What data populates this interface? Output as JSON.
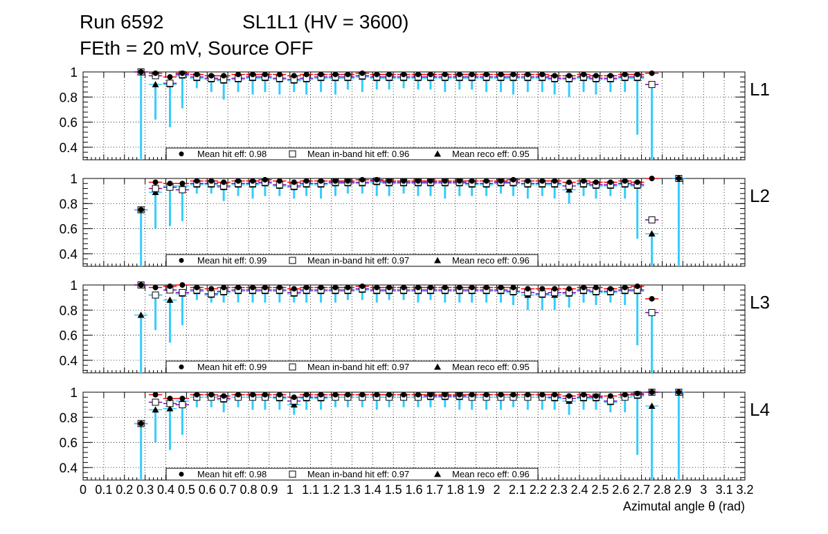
{
  "header": {
    "run": "Run 6592",
    "chamber": "SL1L1 (HV = 3600)",
    "conditions": "FEth = 20 mV, Source OFF"
  },
  "colors": {
    "hit": "#000000",
    "hit_err": "#ff0000",
    "inband_err": "#8000c0",
    "reco_err": "#33ccff",
    "grid": "#000000"
  },
  "chart_data": {
    "type": "scatter",
    "title": "Run 6592   SL1L1 (HV = 3600)  FEth = 20 mV, Source OFF",
    "xlabel": "Azimutal angle θ (rad)",
    "xlim": [
      0,
      3.2
    ],
    "ylim": [
      0.3,
      1.0
    ],
    "x_ticks": [
      "0",
      "0.1",
      "0.2",
      "0.3",
      "0.4",
      "0.5",
      "0.6",
      "0.7",
      "0.8",
      "0.9",
      "1",
      "1.1",
      "1.2",
      "1.3",
      "1.4",
      "1.5",
      "1.6",
      "1.7",
      "1.8",
      "1.9",
      "2",
      "2.1",
      "2.2",
      "2.3",
      "2.4",
      "2.5",
      "2.6",
      "2.7",
      "2.8",
      "2.9",
      "3",
      "3.1",
      "3.2"
    ],
    "y_ticks": [
      "0.4",
      "0.6",
      "0.8",
      "1"
    ],
    "x": [
      0.28,
      0.35,
      0.42,
      0.48,
      0.55,
      0.62,
      0.68,
      0.75,
      0.82,
      0.88,
      0.95,
      1.02,
      1.08,
      1.15,
      1.22,
      1.28,
      1.35,
      1.42,
      1.48,
      1.55,
      1.62,
      1.68,
      1.75,
      1.82,
      1.88,
      1.95,
      2.02,
      2.08,
      2.15,
      2.22,
      2.28,
      2.35,
      2.42,
      2.48,
      2.55,
      2.62,
      2.68,
      2.75,
      2.82,
      2.88
    ],
    "panels": [
      {
        "label": "L1",
        "legend": [
          "Mean hit  eff: 0.98",
          "Mean in-band hit eff: 0.96",
          "Mean reco eff: 0.95"
        ],
        "hit": [
          1.0,
          0.99,
          0.96,
          0.99,
          0.98,
          0.97,
          0.97,
          0.98,
          0.98,
          0.98,
          0.98,
          0.97,
          0.98,
          0.98,
          0.98,
          0.98,
          0.99,
          0.98,
          0.98,
          0.98,
          0.98,
          0.98,
          0.98,
          0.98,
          0.98,
          0.98,
          0.98,
          0.98,
          0.98,
          0.98,
          0.97,
          0.97,
          0.98,
          0.97,
          0.97,
          0.98,
          0.98,
          0.99,
          null,
          null
        ],
        "inband": [
          1.0,
          0.97,
          0.91,
          0.98,
          0.96,
          0.95,
          0.94,
          0.95,
          0.96,
          0.96,
          0.95,
          0.94,
          0.95,
          0.96,
          0.96,
          0.96,
          0.97,
          0.96,
          0.96,
          0.96,
          0.96,
          0.96,
          0.96,
          0.96,
          0.96,
          0.96,
          0.96,
          0.96,
          0.96,
          0.96,
          0.95,
          0.95,
          0.96,
          0.95,
          0.95,
          0.96,
          0.96,
          0.9,
          null,
          null
        ],
        "reco": [
          null,
          0.9,
          0.9,
          0.97,
          0.95,
          0.94,
          0.93,
          0.94,
          0.95,
          0.95,
          0.94,
          0.93,
          0.94,
          0.95,
          0.95,
          0.95,
          0.96,
          0.95,
          0.95,
          0.95,
          0.95,
          0.95,
          0.95,
          0.95,
          0.95,
          0.95,
          0.95,
          0.95,
          0.95,
          0.95,
          0.94,
          0.94,
          0.95,
          0.94,
          0.94,
          0.95,
          0.95,
          null,
          null,
          null
        ],
        "reco_low": [
          0.3,
          0.62,
          0.56,
          0.71,
          0.87,
          0.84,
          0.78,
          0.84,
          0.82,
          0.84,
          0.82,
          0.84,
          0.82,
          0.84,
          0.82,
          0.86,
          0.84,
          0.86,
          0.86,
          0.87,
          0.86,
          0.86,
          0.84,
          0.86,
          0.86,
          0.84,
          0.84,
          0.82,
          0.84,
          0.84,
          0.82,
          0.8,
          0.84,
          0.82,
          0.84,
          0.84,
          0.5,
          0.3,
          null,
          null
        ]
      },
      {
        "label": "L2",
        "legend": [
          "Mean hit  eff: 0.99",
          "Mean in-band hit eff: 0.97",
          "Mean reco eff: 0.96"
        ],
        "hit": [
          0.75,
          0.97,
          0.96,
          0.96,
          0.98,
          0.98,
          0.97,
          0.98,
          0.98,
          0.99,
          0.98,
          0.97,
          0.98,
          0.98,
          0.98,
          0.98,
          0.99,
          0.99,
          0.98,
          0.98,
          0.98,
          0.98,
          0.98,
          0.98,
          0.98,
          0.98,
          0.98,
          0.99,
          0.98,
          0.98,
          0.98,
          0.97,
          0.98,
          0.97,
          0.97,
          0.98,
          0.97,
          1.0,
          null,
          1.0
        ],
        "inband": [
          0.75,
          0.92,
          0.93,
          0.91,
          0.96,
          0.96,
          0.94,
          0.96,
          0.96,
          0.97,
          0.95,
          0.94,
          0.96,
          0.96,
          0.97,
          0.97,
          0.97,
          0.98,
          0.97,
          0.97,
          0.97,
          0.97,
          0.97,
          0.97,
          0.96,
          0.96,
          0.97,
          0.97,
          0.96,
          0.96,
          0.96,
          0.94,
          0.96,
          0.95,
          0.95,
          0.96,
          0.95,
          0.67,
          null,
          1.0
        ],
        "reco": [
          0.75,
          0.89,
          0.94,
          0.94,
          0.95,
          0.95,
          0.93,
          0.95,
          0.95,
          0.96,
          0.94,
          0.93,
          0.95,
          0.95,
          0.96,
          0.96,
          0.96,
          0.97,
          0.96,
          0.96,
          0.96,
          0.96,
          0.96,
          0.96,
          0.95,
          0.95,
          0.96,
          0.96,
          0.95,
          0.95,
          0.95,
          0.91,
          0.95,
          0.94,
          0.94,
          0.95,
          0.94,
          0.56,
          null,
          1.0
        ],
        "reco_low": [
          0.3,
          0.6,
          0.62,
          0.66,
          0.88,
          0.88,
          0.82,
          0.86,
          0.84,
          0.86,
          0.86,
          0.84,
          0.86,
          0.84,
          0.86,
          0.88,
          0.88,
          0.86,
          0.86,
          0.88,
          0.86,
          0.86,
          0.84,
          0.86,
          0.86,
          0.86,
          0.88,
          0.86,
          0.84,
          0.86,
          0.84,
          0.8,
          0.86,
          0.84,
          0.86,
          0.84,
          0.52,
          0.3,
          null,
          0.3
        ]
      },
      {
        "label": "L3",
        "legend": [
          "Mean hit  eff: 0.99",
          "Mean in-band hit eff: 0.97",
          "Mean reco eff: 0.95"
        ],
        "hit": [
          1.0,
          0.98,
          0.99,
          1.0,
          0.98,
          0.97,
          0.98,
          0.98,
          0.98,
          0.98,
          0.98,
          0.97,
          0.98,
          0.98,
          0.98,
          0.98,
          0.99,
          0.98,
          0.98,
          0.98,
          0.98,
          0.98,
          0.98,
          0.98,
          0.98,
          0.98,
          0.98,
          0.98,
          0.97,
          0.97,
          0.97,
          0.97,
          0.98,
          0.98,
          0.97,
          0.98,
          0.99,
          0.89,
          null,
          null
        ],
        "inband": [
          1.0,
          0.92,
          0.96,
          0.94,
          0.96,
          0.93,
          0.95,
          0.96,
          0.96,
          0.96,
          0.96,
          0.94,
          0.96,
          0.96,
          0.96,
          0.96,
          0.97,
          0.96,
          0.96,
          0.96,
          0.96,
          0.96,
          0.96,
          0.96,
          0.96,
          0.96,
          0.96,
          0.95,
          0.94,
          0.93,
          0.94,
          0.94,
          0.96,
          0.95,
          0.95,
          0.96,
          0.96,
          0.78,
          null,
          null
        ],
        "reco": [
          0.76,
          0.92,
          0.88,
          0.93,
          0.95,
          0.92,
          0.94,
          0.95,
          0.95,
          0.95,
          0.95,
          0.93,
          0.95,
          0.95,
          0.95,
          0.95,
          0.96,
          0.95,
          0.95,
          0.95,
          0.95,
          0.95,
          0.95,
          0.95,
          0.95,
          0.95,
          0.95,
          0.94,
          0.92,
          0.92,
          0.92,
          0.93,
          0.95,
          0.94,
          0.94,
          0.95,
          0.95,
          null,
          null,
          null
        ],
        "reco_low": [
          0.3,
          0.64,
          0.54,
          0.68,
          0.88,
          0.86,
          0.86,
          0.86,
          0.86,
          0.86,
          0.86,
          0.86,
          0.86,
          0.86,
          0.86,
          0.88,
          0.88,
          0.86,
          0.88,
          0.88,
          0.86,
          0.88,
          0.86,
          0.86,
          0.86,
          0.86,
          0.86,
          0.84,
          0.8,
          0.8,
          0.8,
          0.82,
          0.86,
          0.84,
          0.86,
          0.84,
          0.52,
          0.3,
          null,
          null
        ]
      },
      {
        "label": "L4",
        "legend": [
          "Mean hit  eff: 0.98",
          "Mean in-band hit eff: 0.97",
          "Mean reco eff: 0.96"
        ],
        "hit": [
          0.75,
          0.98,
          0.95,
          0.95,
          0.98,
          0.98,
          0.97,
          0.98,
          0.98,
          0.98,
          0.98,
          0.96,
          0.98,
          0.98,
          0.98,
          0.98,
          0.98,
          0.98,
          0.98,
          0.98,
          0.98,
          0.98,
          0.98,
          0.98,
          0.98,
          0.98,
          0.98,
          0.98,
          0.98,
          0.98,
          0.98,
          0.97,
          0.98,
          0.97,
          0.97,
          0.98,
          0.99,
          1.0,
          null,
          1.0
        ],
        "inband": [
          0.75,
          0.92,
          0.91,
          0.9,
          0.96,
          0.96,
          0.95,
          0.96,
          0.96,
          0.96,
          0.96,
          0.93,
          0.96,
          0.96,
          0.96,
          0.96,
          0.96,
          0.96,
          0.96,
          0.96,
          0.96,
          0.97,
          0.97,
          0.97,
          0.96,
          0.96,
          0.96,
          0.96,
          0.96,
          0.96,
          0.96,
          0.95,
          0.96,
          0.96,
          0.93,
          0.96,
          0.98,
          1.0,
          null,
          1.0
        ],
        "reco": [
          0.75,
          0.86,
          0.87,
          0.93,
          0.96,
          0.96,
          0.94,
          0.96,
          0.96,
          0.96,
          0.95,
          0.9,
          0.95,
          0.95,
          0.96,
          0.96,
          0.96,
          0.96,
          0.96,
          0.96,
          0.96,
          0.96,
          0.96,
          0.96,
          0.96,
          0.96,
          0.96,
          0.96,
          0.96,
          0.96,
          0.95,
          0.93,
          0.95,
          0.95,
          0.92,
          0.96,
          0.97,
          0.89,
          null,
          1.0
        ],
        "reco_low": [
          0.3,
          0.6,
          0.54,
          0.66,
          0.88,
          0.88,
          0.84,
          0.88,
          0.86,
          0.86,
          0.86,
          0.82,
          0.86,
          0.86,
          0.88,
          0.88,
          0.88,
          0.86,
          0.88,
          0.88,
          0.88,
          0.88,
          0.88,
          0.86,
          0.86,
          0.86,
          0.86,
          0.88,
          0.86,
          0.86,
          0.86,
          0.82,
          0.86,
          0.86,
          0.84,
          0.84,
          0.5,
          0.3,
          null,
          0.3
        ]
      }
    ]
  }
}
